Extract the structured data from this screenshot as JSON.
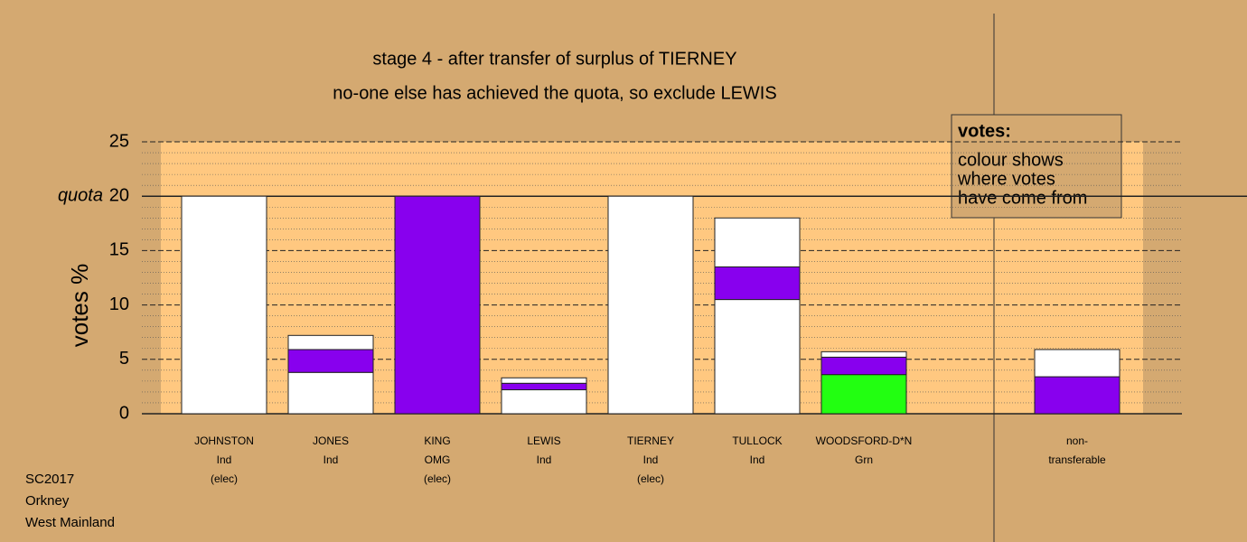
{
  "chart_data": {
    "type": "stacked_bar",
    "title": "stage 4 - after transfer of surplus of TIERNEY",
    "subtitle": "no-one else has achieved the quota, so exclude LEWIS",
    "y_label": "votes %",
    "categories": [
      [
        "JOHNSTON",
        "Ind",
        "(elec)"
      ],
      [
        "JONES",
        "Ind"
      ],
      [
        "KING",
        "OMG",
        "(elec)"
      ],
      [
        "LEWIS",
        "Ind"
      ],
      [
        "TIERNEY",
        "Ind",
        "(elec)"
      ],
      [
        "TULLOCK",
        "Ind"
      ],
      [
        "WOODSFORD-D*N",
        "Grn"
      ],
      [
        "non-",
        "transferable"
      ]
    ],
    "series": [
      {
        "colors": [
          "#ffffff",
          "#ffffff",
          "#8800ee",
          "#ffffff",
          "#ffffff",
          "#ffffff",
          "#22ff11",
          null
        ],
        "values": [
          20,
          3.8,
          20,
          2.2,
          20,
          10.5,
          3.6,
          null
        ]
      },
      {
        "color": "#8800ee",
        "values": [
          null,
          2.1,
          null,
          0.6,
          null,
          3.0,
          1.6,
          3.4
        ]
      },
      {
        "color": "#ffffff",
        "values": [
          null,
          1.3,
          null,
          0.5,
          null,
          4.5,
          0.5,
          2.5
        ]
      }
    ],
    "ylim": [
      0,
      25
    ],
    "yticks": [
      0,
      5,
      10,
      15,
      20,
      25
    ],
    "quota": {
      "text": "quota",
      "value": 20
    },
    "legend": {
      "title": "votes:",
      "lines": [
        "colour shows",
        "where votes",
        "have come from"
      ]
    },
    "footer": [
      "SC2017",
      "Orkney",
      "West Mainland"
    ],
    "grid": true
  }
}
